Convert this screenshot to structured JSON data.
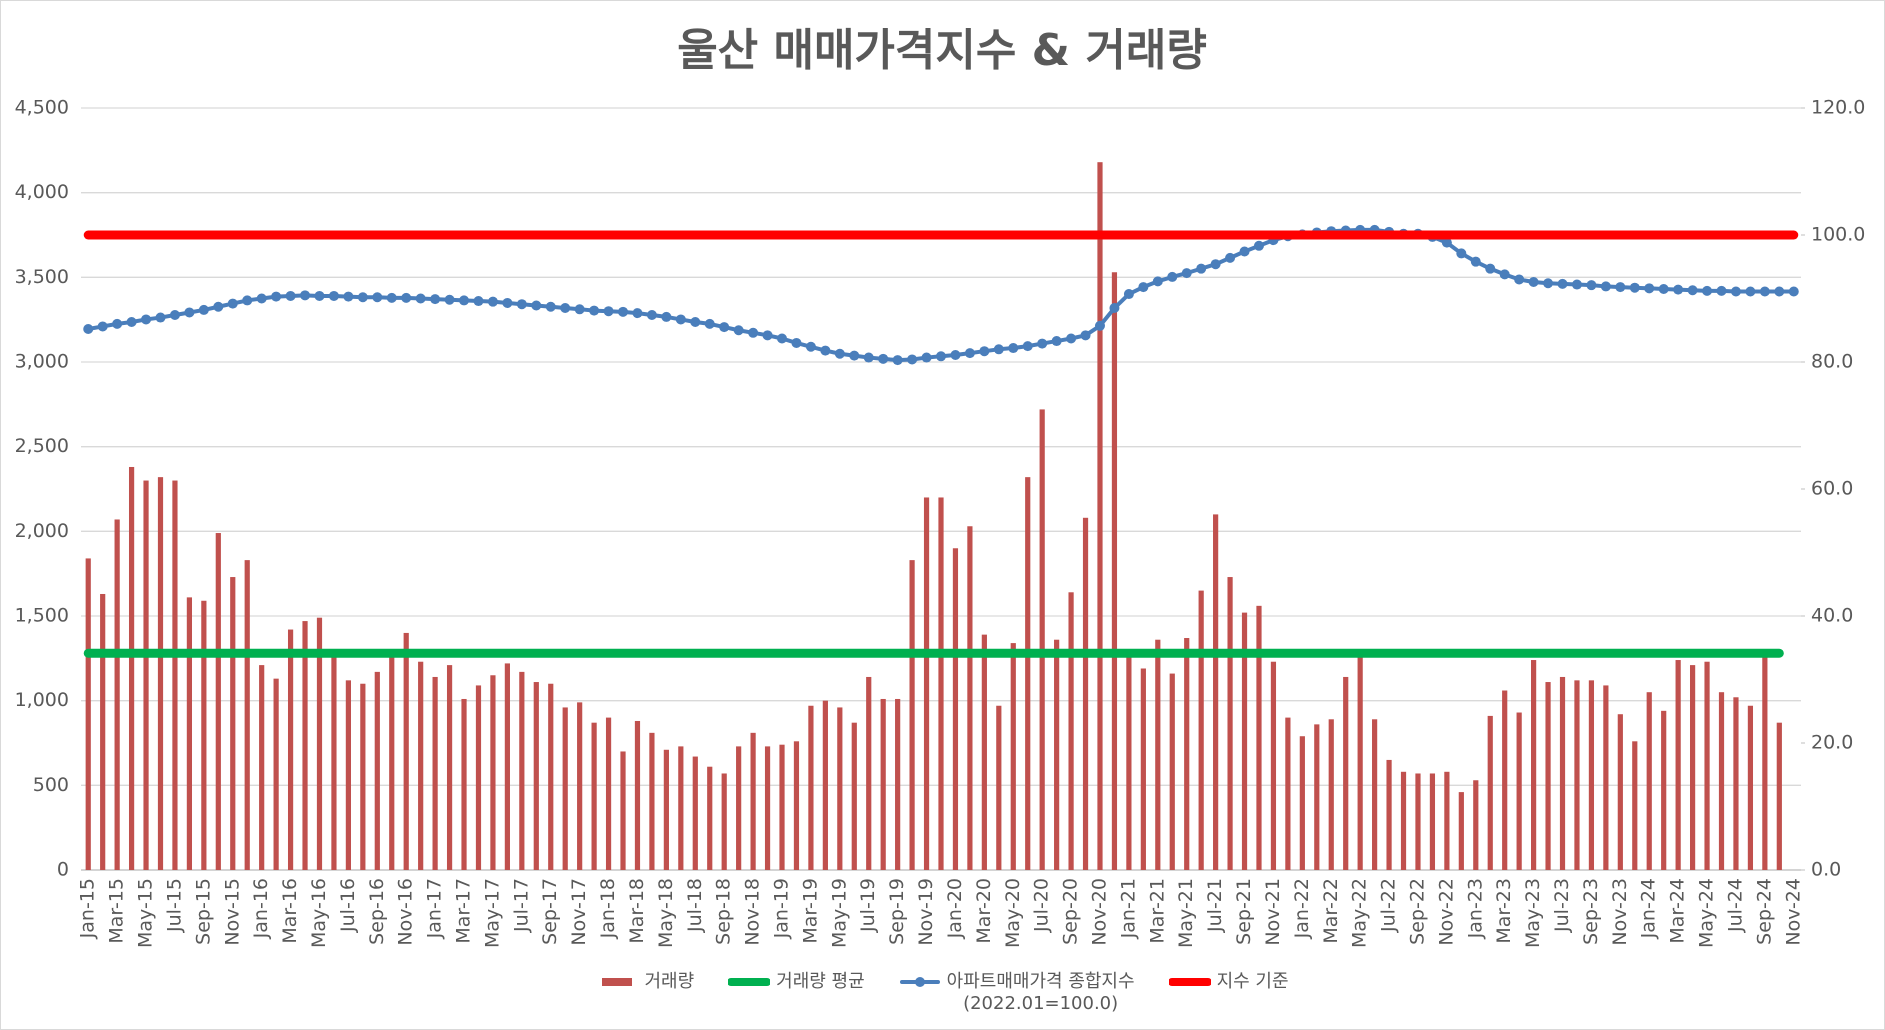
{
  "chart_data": {
    "type": "combo",
    "title": "울산 매매가격지수 & 거래량",
    "categories": [
      "Jan-15",
      null,
      "Mar-15",
      null,
      "May-15",
      null,
      "Jul-15",
      null,
      "Sep-15",
      null,
      "Nov-15",
      null,
      "Jan-16",
      null,
      "Mar-16",
      null,
      "May-16",
      null,
      "Jul-16",
      null,
      "Sep-16",
      null,
      "Nov-16",
      null,
      "Jan-17",
      null,
      "Mar-17",
      null,
      "May-17",
      null,
      "Jul-17",
      null,
      "Sep-17",
      null,
      "Nov-17",
      null,
      "Jan-18",
      null,
      "Mar-18",
      null,
      "May-18",
      null,
      "Jul-18",
      null,
      "Sep-18",
      null,
      "Nov-18",
      null,
      "Jan-19",
      null,
      "Mar-19",
      null,
      "May-19",
      null,
      "Jul-19",
      null,
      "Sep-19",
      null,
      "Nov-19",
      null,
      "Jan-20",
      null,
      "Mar-20",
      null,
      "May-20",
      null,
      "Jul-20",
      null,
      "Sep-20",
      null,
      "Nov-20",
      null,
      "Jan-21",
      null,
      "Mar-21",
      null,
      "May-21",
      null,
      "Jul-21",
      null,
      "Sep-21",
      null,
      "Nov-21",
      null,
      "Jan-22",
      null,
      "Mar-22",
      null,
      "May-22",
      null,
      "Jul-22",
      null,
      "Sep-22",
      null,
      "Nov-22",
      null,
      "Jan-23",
      null,
      "Mar-23",
      null,
      "May-23",
      null,
      "Jul-23",
      null,
      "Sep-23",
      null,
      "Nov-23",
      null,
      "Jan-24",
      null,
      "Mar-24",
      null,
      "May-24",
      null,
      "Jul-24",
      null,
      "Sep-24",
      null,
      "Nov-24"
    ],
    "series": [
      {
        "name": "거래량",
        "type": "bar",
        "color": "#c0504d",
        "values": [
          1840,
          1630,
          2070,
          2380,
          2300,
          2320,
          2300,
          1610,
          1590,
          1990,
          1730,
          1830,
          1210,
          1130,
          1420,
          1470,
          1490,
          1280,
          1120,
          1100,
          1170,
          1270,
          1400,
          1230,
          1140,
          1210,
          1010,
          1090,
          1150,
          1220,
          1170,
          1110,
          1100,
          960,
          990,
          870,
          900,
          700,
          880,
          810,
          710,
          730,
          670,
          610,
          570,
          730,
          810,
          730,
          740,
          760,
          970,
          1000,
          960,
          870,
          1140,
          1010,
          1010,
          1830,
          2200,
          2200,
          1900,
          2030,
          1390,
          970,
          1340,
          2320,
          2720,
          1360,
          1640,
          2080,
          4180,
          3530,
          1270,
          1190,
          1360,
          1160,
          1370,
          1650,
          2100,
          1730,
          1520,
          1560,
          1230,
          900,
          790,
          860,
          890,
          1140,
          1260,
          890,
          650,
          580,
          570,
          570,
          580,
          460,
          530,
          910,
          1060,
          930,
          1240,
          1110,
          1140,
          1120,
          1120,
          1090,
          920,
          760,
          1050,
          940,
          1240,
          1210,
          1230,
          1050,
          1020,
          970,
          1270,
          870,
          null
        ]
      },
      {
        "name": "거래량 평균",
        "type": "line",
        "color": "#00b050",
        "values": [
          1280,
          1280,
          1280,
          1280,
          1280,
          1280,
          1280,
          1280,
          1280,
          1280,
          1280,
          1280,
          1280,
          1280,
          1280,
          1280,
          1280,
          1280,
          1280,
          1280,
          1280,
          1280,
          1280,
          1280,
          1280,
          1280,
          1280,
          1280,
          1280,
          1280,
          1280,
          1280,
          1280,
          1280,
          1280,
          1280,
          1280,
          1280,
          1280,
          1280,
          1280,
          1280,
          1280,
          1280,
          1280,
          1280,
          1280,
          1280,
          1280,
          1280,
          1280,
          1280,
          1280,
          1280,
          1280,
          1280,
          1280,
          1280,
          1280,
          1280,
          1280,
          1280,
          1280,
          1280,
          1280,
          1280,
          1280,
          1280,
          1280,
          1280,
          1280,
          1280,
          1280,
          1280,
          1280,
          1280,
          1280,
          1280,
          1280,
          1280,
          1280,
          1280,
          1280,
          1280,
          1280,
          1280,
          1280,
          1280,
          1280,
          1280,
          1280,
          1280,
          1280,
          1280,
          1280,
          1280,
          1280,
          1280,
          1280,
          1280,
          1280,
          1280,
          1280,
          1280,
          1280,
          1280,
          1280,
          1280,
          1280,
          1280,
          1280,
          1280,
          1280,
          1280,
          1280,
          1280,
          1280,
          1280,
          null
        ]
      },
      {
        "name": "아파트매매가격 종합지수\n(2022.01=100.0)",
        "type": "line",
        "marker": true,
        "axis": "y2",
        "color": "#4a7ebb",
        "values": [
          85.2,
          85.6,
          86.0,
          86.3,
          86.7,
          87.0,
          87.4,
          87.8,
          88.2,
          88.7,
          89.2,
          89.7,
          90.0,
          90.3,
          90.4,
          90.5,
          90.4,
          90.4,
          90.3,
          90.2,
          90.2,
          90.1,
          90.1,
          90.0,
          89.9,
          89.8,
          89.7,
          89.6,
          89.5,
          89.3,
          89.1,
          88.9,
          88.7,
          88.5,
          88.3,
          88.1,
          88.0,
          87.9,
          87.7,
          87.4,
          87.1,
          86.7,
          86.3,
          86.0,
          85.5,
          85.0,
          84.6,
          84.2,
          83.7,
          83.0,
          82.4,
          81.8,
          81.3,
          81.0,
          80.7,
          80.5,
          80.3,
          80.4,
          80.7,
          80.9,
          81.1,
          81.4,
          81.7,
          82.0,
          82.2,
          82.5,
          82.9,
          83.3,
          83.7,
          84.2,
          85.7,
          88.5,
          90.7,
          91.8,
          92.7,
          93.4,
          94.0,
          94.7,
          95.4,
          96.4,
          97.4,
          98.3,
          99.2,
          99.8,
          100.1,
          100.4,
          100.6,
          100.7,
          100.8,
          100.8,
          100.5,
          100.2,
          100.2,
          99.7,
          98.8,
          97.1,
          95.8,
          94.7,
          93.8,
          93.0,
          92.6,
          92.4,
          92.3,
          92.2,
          92.1,
          91.9,
          91.8,
          91.7,
          91.6,
          91.5,
          91.4,
          91.3,
          91.2,
          91.2,
          91.1,
          91.1,
          91.1,
          91.1,
          91.1
        ]
      },
      {
        "name": "지수 기준",
        "type": "line",
        "axis": "y2",
        "color": "#ff0000",
        "values": [
          100,
          100,
          100,
          100,
          100,
          100,
          100,
          100,
          100,
          100,
          100,
          100,
          100,
          100,
          100,
          100,
          100,
          100,
          100,
          100,
          100,
          100,
          100,
          100,
          100,
          100,
          100,
          100,
          100,
          100,
          100,
          100,
          100,
          100,
          100,
          100,
          100,
          100,
          100,
          100,
          100,
          100,
          100,
          100,
          100,
          100,
          100,
          100,
          100,
          100,
          100,
          100,
          100,
          100,
          100,
          100,
          100,
          100,
          100,
          100,
          100,
          100,
          100,
          100,
          100,
          100,
          100,
          100,
          100,
          100,
          100,
          100,
          100,
          100,
          100,
          100,
          100,
          100,
          100,
          100,
          100,
          100,
          100,
          100,
          100,
          100,
          100,
          100,
          100,
          100,
          100,
          100,
          100,
          100,
          100,
          100,
          100,
          100,
          100,
          100,
          100,
          100,
          100,
          100,
          100,
          100,
          100,
          100,
          100,
          100,
          100,
          100,
          100,
          100,
          100,
          100,
          100,
          100,
          100
        ]
      }
    ],
    "ylim": [
      0,
      4500
    ],
    "yticks": [
      0,
      500,
      {
        "value": 1000,
        "label": "1,000"
      },
      {
        "value": 1500,
        "label": "1,500"
      },
      {
        "value": 2000,
        "label": "2,000"
      },
      {
        "value": 2500,
        "label": "2,500"
      },
      {
        "value": 3000,
        "label": "3,000"
      },
      {
        "value": 3500,
        "label": "3,500"
      },
      {
        "value": 4000,
        "label": "4,000"
      },
      {
        "value": 4500,
        "label": "4,500"
      }
    ],
    "y2lim": [
      0,
      120
    ],
    "y2ticks": [
      {
        "value": 0,
        "label": "0.0"
      },
      {
        "value": 20,
        "label": "20.0"
      },
      {
        "value": 40,
        "label": "40.0"
      },
      {
        "value": 60,
        "label": "60.0"
      },
      {
        "value": 80,
        "label": "80.0"
      },
      {
        "value": 100,
        "label": "100.0"
      },
      {
        "value": 120,
        "label": "120.0"
      }
    ],
    "grid": true,
    "legend": "bottom"
  }
}
